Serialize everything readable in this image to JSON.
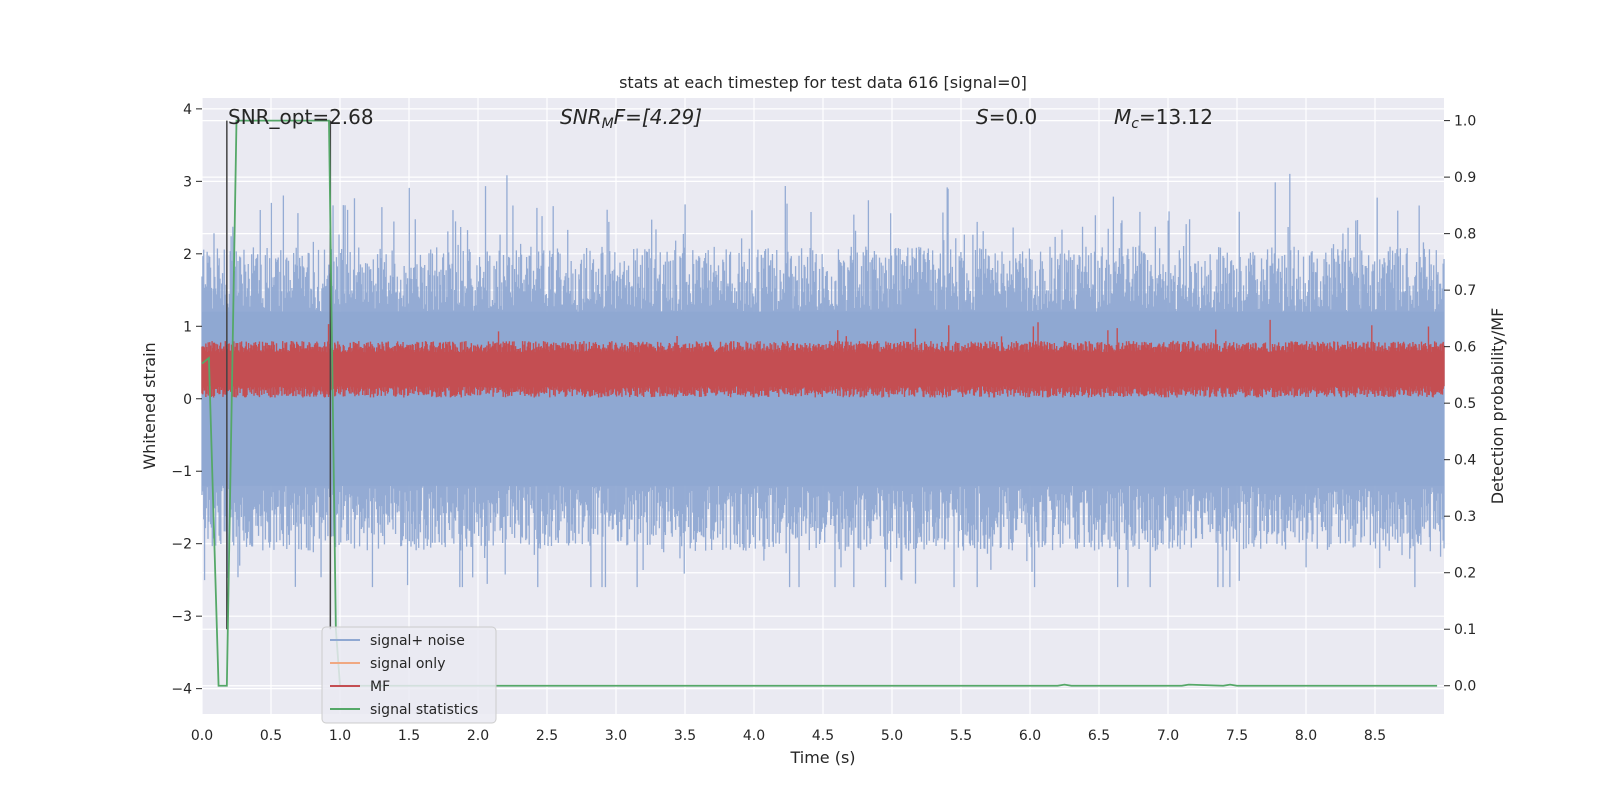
{
  "chart_data": {
    "type": "line",
    "title": "stats at each timestep for test data 616 [signal=0]",
    "xlabel": "Time (s)",
    "ylabel": "Whitened strain",
    "y2label": "Detection probability/MF",
    "xlim": [
      0.0,
      9.0
    ],
    "ylim": [
      -4.35,
      4.15
    ],
    "y2lim": [
      -0.05,
      1.04
    ],
    "x_ticks": [
      "0.0",
      "0.5",
      "1.0",
      "1.5",
      "2.0",
      "2.5",
      "3.0",
      "3.5",
      "4.0",
      "4.5",
      "5.0",
      "5.5",
      "6.0",
      "6.5",
      "7.0",
      "7.5",
      "8.0",
      "8.5"
    ],
    "y_ticks": [
      "4",
      "3",
      "2",
      "1",
      "0",
      "−1",
      "−2",
      "−3",
      "−4"
    ],
    "y2_ticks": [
      "1.0",
      "0.9",
      "0.8",
      "0.7",
      "0.6",
      "0.5",
      "0.4",
      "0.3",
      "0.2",
      "0.1",
      "0.0"
    ],
    "grid": true,
    "legend_position": "lower-left",
    "annotations": {
      "snr_opt": "SNR_opt=2.68",
      "snr_mf_label": "SNR",
      "snr_mf_sub": "M",
      "snr_mf_rest": "F=[4.29]",
      "s_label": "S",
      "s_value": "=0.0",
      "mc_label": "M",
      "mc_sub": "c",
      "mc_value": "=13.12"
    },
    "series": [
      {
        "name": "signal+ noise",
        "color": "#8fa8d2",
        "description_kind": "noise",
        "amplitude_band": [
          -2.6,
          3.4
        ]
      },
      {
        "name": "signal only",
        "color": "#f0a882",
        "values": []
      },
      {
        "name": "MF",
        "color": "#c44e52",
        "axis": "right",
        "band": [
          0.52,
          0.6
        ]
      },
      {
        "name": "signal statistics",
        "color": "#55a868",
        "axis": "right",
        "x": [
          0.0,
          0.05,
          0.12,
          0.18,
          0.25,
          0.92,
          0.97,
          1.0,
          6.2,
          6.25,
          6.3,
          7.1,
          7.15,
          7.4,
          7.45,
          7.5,
          8.95
        ],
        "values": [
          0.57,
          0.58,
          0.0,
          0.0,
          1.0,
          1.0,
          0.1,
          0.0,
          0.0,
          0.002,
          0.0,
          0.0,
          0.002,
          0.0,
          0.002,
          0.0,
          0.0
        ]
      }
    ],
    "vertical_markers": [
      0.18,
      0.93
    ]
  }
}
